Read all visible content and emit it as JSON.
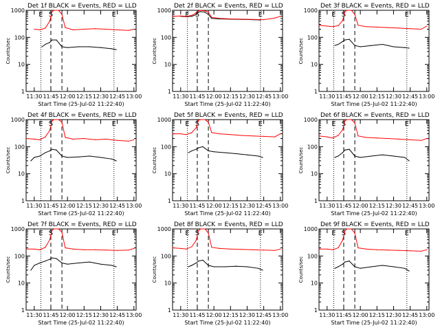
{
  "common": {
    "title_suffix": " BLACK = Events, RED = LLD",
    "xlabel": "Start Time (25-Jul-02 11:22:40)",
    "ylabel": "Counts/sec",
    "x_ticks": [
      "11:30",
      "11:45",
      "12:00",
      "12:15",
      "12:30",
      "12:45",
      "13:00"
    ],
    "y_ticks": [
      "1",
      "10",
      "100",
      "1000"
    ],
    "marker_start": "S",
    "marker_end": "E",
    "colors": {
      "events": "#000000",
      "lld": "#ff0000",
      "axes": "#000000"
    }
  },
  "chart_data": [
    {
      "title": "Det 1f",
      "type": "line",
      "yscale": "log",
      "ylim": [
        1,
        1000
      ],
      "xlim": [
        "11:22:40",
        "13:02:00"
      ],
      "vlines": {
        "dotted": [
          "11:36",
          "12:42"
        ],
        "dashed": [
          "11:45",
          "11:55"
        ]
      },
      "series": [
        {
          "name": "Events",
          "color": "#000000",
          "x": [
            "11:37",
            "11:40",
            "11:44",
            "11:46",
            "11:50",
            "11:55",
            "12:00",
            "12:10",
            "12:20",
            "12:30",
            "12:40",
            "12:44"
          ],
          "y": [
            45,
            55,
            65,
            80,
            80,
            45,
            42,
            45,
            45,
            42,
            38,
            35
          ]
        },
        {
          "name": "LLD",
          "color": "#ff0000",
          "x": [
            "11:30",
            "11:35",
            "11:40",
            "11:44",
            "11:46",
            "11:48",
            "11:52",
            "11:55",
            "11:58",
            "12:05",
            "12:15",
            "12:25",
            "12:35",
            "12:45",
            "12:55",
            "13:00"
          ],
          "y": [
            200,
            190,
            220,
            400,
            900,
            1000,
            1000,
            700,
            230,
            190,
            200,
            210,
            200,
            190,
            180,
            200
          ]
        }
      ]
    },
    {
      "title": "Det 2f",
      "type": "line",
      "yscale": "log",
      "ylim": [
        1,
        1000
      ],
      "xlim": [
        "11:22:40",
        "13:02:00"
      ],
      "vlines": {
        "dotted": [
          "11:36",
          "12:42"
        ],
        "dashed": [
          "11:45",
          "11:55"
        ]
      },
      "series": [
        {
          "name": "Events",
          "color": "#000000",
          "x": [
            "11:30",
            "11:35",
            "11:40",
            "11:44",
            "11:46",
            "11:48",
            "11:52",
            "11:55",
            "11:58",
            "12:05",
            "12:15",
            "12:25",
            "12:35",
            "12:42"
          ],
          "y": [
            600,
            580,
            600,
            700,
            850,
            900,
            850,
            700,
            500,
            480,
            470,
            460,
            450,
            440
          ]
        },
        {
          "name": "LLD",
          "color": "#ff0000",
          "x": [
            "11:22",
            "11:30",
            "11:35",
            "11:40",
            "11:44",
            "11:46",
            "11:48",
            "11:52",
            "11:55",
            "11:58",
            "12:05",
            "12:15",
            "12:25",
            "12:35",
            "12:45",
            "12:55",
            "13:00"
          ],
          "y": [
            600,
            620,
            600,
            650,
            800,
            950,
            1000,
            950,
            850,
            550,
            500,
            480,
            470,
            460,
            450,
            520,
            600
          ]
        }
      ]
    },
    {
      "title": "Det 3f",
      "type": "line",
      "yscale": "log",
      "ylim": [
        1,
        1000
      ],
      "xlim": [
        "11:22:40",
        "13:02:00"
      ],
      "vlines": {
        "dotted": [
          "11:36",
          "12:42"
        ],
        "dashed": [
          "11:45",
          "11:55"
        ]
      },
      "series": [
        {
          "name": "Events",
          "color": "#000000",
          "x": [
            "11:37",
            "11:40",
            "11:44",
            "11:46",
            "11:50",
            "11:55",
            "12:00",
            "12:10",
            "12:20",
            "12:30",
            "12:40",
            "12:44"
          ],
          "y": [
            50,
            55,
            70,
            80,
            85,
            50,
            45,
            50,
            55,
            45,
            42,
            40
          ]
        },
        {
          "name": "LLD",
          "color": "#ff0000",
          "x": [
            "11:22",
            "11:30",
            "11:35",
            "11:40",
            "11:44",
            "11:46",
            "11:48",
            "11:52",
            "11:55",
            "11:58",
            "12:05",
            "12:15",
            "12:25",
            "12:35",
            "12:45",
            "12:55",
            "13:00"
          ],
          "y": [
            280,
            260,
            250,
            270,
            420,
            900,
            1000,
            1000,
            700,
            280,
            250,
            240,
            230,
            220,
            210,
            200,
            260
          ]
        }
      ]
    },
    {
      "title": "Det 4f",
      "type": "line",
      "yscale": "log",
      "ylim": [
        1,
        1000
      ],
      "xlim": [
        "11:22:40",
        "13:02:00"
      ],
      "vlines": {
        "dotted": [
          "11:36",
          "12:42"
        ],
        "dashed": [
          "11:45",
          "11:55"
        ]
      },
      "series": [
        {
          "name": "Events",
          "color": "#000000",
          "x": [
            "11:27",
            "11:30",
            "11:35",
            "11:40",
            "11:44",
            "11:46",
            "11:50",
            "11:55",
            "12:00",
            "12:10",
            "12:20",
            "12:30",
            "12:40",
            "12:44"
          ],
          "y": [
            30,
            40,
            45,
            60,
            70,
            80,
            75,
            45,
            40,
            42,
            45,
            40,
            35,
            30
          ]
        },
        {
          "name": "LLD",
          "color": "#ff0000",
          "x": [
            "11:22",
            "11:30",
            "11:35",
            "11:40",
            "11:44",
            "11:46",
            "11:48",
            "11:52",
            "11:55",
            "11:58",
            "12:05",
            "12:15",
            "12:25",
            "12:35",
            "12:45",
            "12:55",
            "13:00"
          ],
          "y": [
            200,
            190,
            180,
            230,
            400,
            900,
            1000,
            1000,
            800,
            220,
            190,
            200,
            180,
            190,
            170,
            160,
            180
          ]
        }
      ]
    },
    {
      "title": "Det 5f",
      "type": "line",
      "yscale": "log",
      "ylim": [
        1,
        1000
      ],
      "xlim": [
        "11:22:40",
        "13:02:00"
      ],
      "vlines": {
        "dotted": [
          "11:36",
          "12:42"
        ],
        "dashed": [
          "11:45",
          "11:55"
        ]
      },
      "series": [
        {
          "name": "Events",
          "color": "#000000",
          "x": [
            "11:37",
            "11:40",
            "11:44",
            "11:46",
            "11:50",
            "11:55",
            "12:00",
            "12:10",
            "12:20",
            "12:30",
            "12:40",
            "12:44"
          ],
          "y": [
            60,
            70,
            80,
            90,
            100,
            70,
            65,
            60,
            55,
            50,
            45,
            40
          ]
        },
        {
          "name": "LLD",
          "color": "#ff0000",
          "x": [
            "11:22",
            "11:30",
            "11:35",
            "11:40",
            "11:44",
            "11:46",
            "11:48",
            "11:52",
            "11:55",
            "11:58",
            "12:05",
            "12:15",
            "12:25",
            "12:35",
            "12:45",
            "12:55",
            "13:00"
          ],
          "y": [
            300,
            300,
            280,
            330,
            500,
            950,
            1000,
            1000,
            800,
            330,
            300,
            280,
            260,
            250,
            240,
            230,
            300
          ]
        }
      ]
    },
    {
      "title": "Det 6f",
      "type": "line",
      "yscale": "log",
      "ylim": [
        1,
        1000
      ],
      "xlim": [
        "11:22:40",
        "13:02:00"
      ],
      "vlines": {
        "dotted": [
          "11:36",
          "12:42"
        ],
        "dashed": [
          "11:45",
          "11:55"
        ]
      },
      "series": [
        {
          "name": "Events",
          "color": "#000000",
          "x": [
            "11:37",
            "11:40",
            "11:44",
            "11:46",
            "11:50",
            "11:55",
            "12:00",
            "12:10",
            "12:20",
            "12:30",
            "12:40",
            "12:44"
          ],
          "y": [
            40,
            45,
            60,
            75,
            80,
            45,
            40,
            45,
            50,
            45,
            40,
            30
          ]
        },
        {
          "name": "LLD",
          "color": "#ff0000",
          "x": [
            "11:22",
            "11:30",
            "11:35",
            "11:40",
            "11:44",
            "11:46",
            "11:48",
            "11:52",
            "11:55",
            "11:58",
            "12:05",
            "12:15",
            "12:25",
            "12:35",
            "12:45",
            "12:55",
            "13:00"
          ],
          "y": [
            250,
            230,
            210,
            260,
            420,
            900,
            1000,
            1000,
            750,
            250,
            220,
            210,
            200,
            190,
            180,
            170,
            200
          ]
        }
      ]
    },
    {
      "title": "Det 7f",
      "type": "line",
      "yscale": "log",
      "ylim": [
        1,
        1000
      ],
      "xlim": [
        "11:22:40",
        "13:02:00"
      ],
      "vlines": {
        "dotted": [
          "11:36",
          "12:42"
        ],
        "dashed": [
          "11:45",
          "11:55"
        ]
      },
      "series": [
        {
          "name": "Events",
          "color": "#000000",
          "x": [
            "11:27",
            "11:30",
            "11:35",
            "11:40",
            "11:44",
            "11:46",
            "11:50",
            "11:55",
            "12:00",
            "12:10",
            "12:20",
            "12:30",
            "12:40",
            "12:44"
          ],
          "y": [
            30,
            45,
            55,
            65,
            75,
            85,
            80,
            55,
            50,
            55,
            60,
            50,
            45,
            40
          ]
        },
        {
          "name": "LLD",
          "color": "#ff0000",
          "x": [
            "11:22",
            "11:30",
            "11:35",
            "11:40",
            "11:44",
            "11:46",
            "11:48",
            "11:52",
            "11:55",
            "11:58",
            "12:05",
            "12:15",
            "12:25",
            "12:35",
            "12:45",
            "12:55",
            "13:00"
          ],
          "y": [
            180,
            180,
            170,
            210,
            400,
            900,
            1000,
            1000,
            750,
            200,
            180,
            170,
            170,
            165,
            160,
            165,
            190
          ]
        }
      ]
    },
    {
      "title": "Det 8f",
      "type": "line",
      "yscale": "log",
      "ylim": [
        1,
        1000
      ],
      "xlim": [
        "11:22:40",
        "13:02:00"
      ],
      "vlines": {
        "dotted": [
          "11:36",
          "12:42"
        ],
        "dashed": [
          "11:45",
          "11:55"
        ]
      },
      "series": [
        {
          "name": "Events",
          "color": "#000000",
          "x": [
            "11:37",
            "11:40",
            "11:44",
            "11:46",
            "11:50",
            "11:55",
            "12:00",
            "12:10",
            "12:20",
            "12:30",
            "12:40",
            "12:44"
          ],
          "y": [
            40,
            45,
            55,
            65,
            70,
            45,
            40,
            40,
            42,
            40,
            35,
            30
          ]
        },
        {
          "name": "LLD",
          "color": "#ff0000",
          "x": [
            "11:22",
            "11:30",
            "11:35",
            "11:40",
            "11:44",
            "11:46",
            "11:48",
            "11:52",
            "11:55",
            "11:58",
            "12:05",
            "12:15",
            "12:25",
            "12:35",
            "12:45",
            "12:55",
            "13:00"
          ],
          "y": [
            200,
            190,
            180,
            220,
            380,
            850,
            1000,
            1000,
            700,
            210,
            190,
            180,
            175,
            170,
            165,
            160,
            180
          ]
        }
      ]
    },
    {
      "title": "Det 9f",
      "type": "line",
      "yscale": "log",
      "ylim": [
        1,
        1000
      ],
      "xlim": [
        "11:22:40",
        "13:02:00"
      ],
      "vlines": {
        "dotted": [
          "11:36",
          "12:42"
        ],
        "dashed": [
          "11:45",
          "11:55"
        ]
      },
      "series": [
        {
          "name": "Events",
          "color": "#000000",
          "x": [
            "11:37",
            "11:40",
            "11:44",
            "11:46",
            "11:50",
            "11:55",
            "12:00",
            "12:10",
            "12:20",
            "12:30",
            "12:40",
            "12:44"
          ],
          "y": [
            35,
            40,
            50,
            60,
            65,
            40,
            35,
            40,
            45,
            40,
            35,
            28
          ]
        },
        {
          "name": "LLD",
          "color": "#ff0000",
          "x": [
            "11:22",
            "11:30",
            "11:35",
            "11:40",
            "11:44",
            "11:46",
            "11:48",
            "11:52",
            "11:55",
            "11:58",
            "12:05",
            "12:15",
            "12:25",
            "12:35",
            "12:45",
            "12:55",
            "13:00"
          ],
          "y": [
            180,
            180,
            170,
            200,
            380,
            850,
            1000,
            1000,
            700,
            200,
            180,
            170,
            165,
            160,
            155,
            150,
            170
          ]
        }
      ]
    }
  ]
}
